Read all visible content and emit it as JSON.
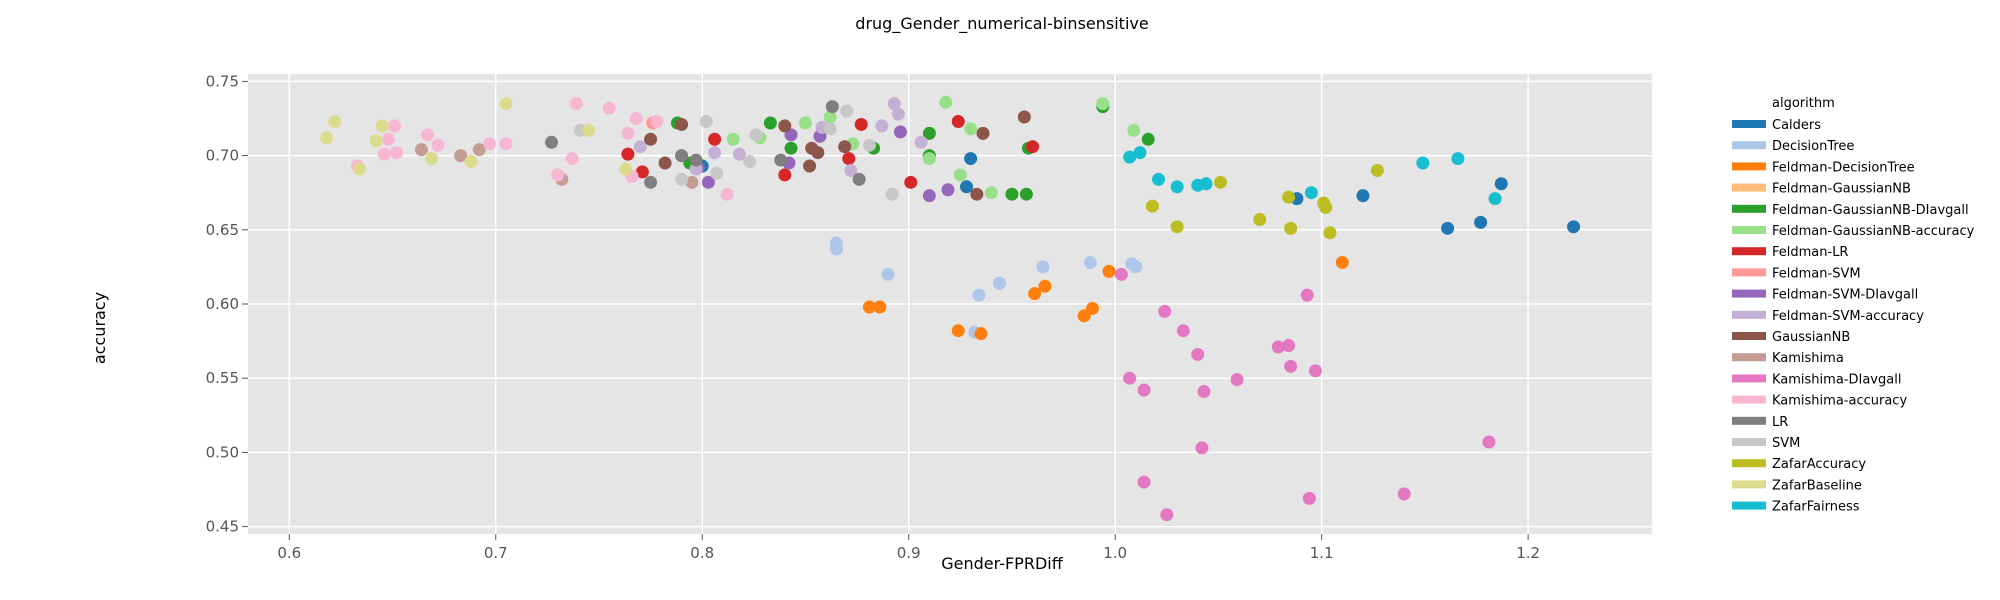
{
  "chart_data": {
    "type": "scatter",
    "title": "drug_Gender_numerical-binsensitive",
    "xlabel": "Gender-FPRDiff",
    "ylabel": "accuracy",
    "xlim": [
      0.58,
      1.26
    ],
    "ylim": [
      0.445,
      0.755
    ],
    "xticks": [
      "0.6",
      "0.7",
      "0.8",
      "0.9",
      "1.0",
      "1.1",
      "1.2"
    ],
    "yticks": [
      "0.45",
      "0.50",
      "0.55",
      "0.60",
      "0.65",
      "0.70",
      "0.75"
    ],
    "grid": true,
    "background": "#e5e5e5",
    "legend": {
      "title": "algorithm",
      "placement": "right"
    },
    "series": [
      {
        "name": "Calders",
        "color": "#1f77b4",
        "points": [
          [
            1.088,
            0.671
          ],
          [
            1.12,
            0.673
          ],
          [
            1.161,
            0.651
          ],
          [
            1.177,
            0.655
          ],
          [
            1.187,
            0.681
          ],
          [
            1.222,
            0.652
          ],
          [
            0.93,
            0.698
          ],
          [
            0.928,
            0.679
          ],
          [
            0.8,
            0.693
          ]
        ]
      },
      {
        "name": "DecisionTree",
        "color": "#aec7e8",
        "points": [
          [
            0.865,
            0.641
          ],
          [
            0.865,
            0.637
          ],
          [
            0.89,
            0.62
          ],
          [
            0.932,
            0.581
          ],
          [
            0.934,
            0.606
          ],
          [
            0.944,
            0.614
          ],
          [
            0.965,
            0.625
          ],
          [
            0.988,
            0.628
          ],
          [
            1.008,
            0.627
          ],
          [
            1.01,
            0.625
          ]
        ]
      },
      {
        "name": "Feldman-DecisionTree",
        "color": "#ff7f0e",
        "points": [
          [
            0.881,
            0.598
          ],
          [
            0.886,
            0.598
          ],
          [
            0.924,
            0.582
          ],
          [
            0.935,
            0.58
          ],
          [
            0.961,
            0.607
          ],
          [
            0.966,
            0.612
          ],
          [
            0.985,
            0.592
          ],
          [
            0.989,
            0.597
          ],
          [
            0.997,
            0.622
          ],
          [
            1.11,
            0.628
          ]
        ]
      },
      {
        "name": "Feldman-GaussianNB",
        "color": "#ffbb78",
        "points": []
      },
      {
        "name": "Feldman-GaussianNB-DIavgall",
        "color": "#2ca02c",
        "points": [
          [
            0.788,
            0.722
          ],
          [
            0.794,
            0.695
          ],
          [
            0.833,
            0.722
          ],
          [
            0.843,
            0.705
          ],
          [
            0.883,
            0.705
          ],
          [
            0.91,
            0.7
          ],
          [
            0.91,
            0.715
          ],
          [
            0.95,
            0.674
          ],
          [
            0.957,
            0.674
          ],
          [
            0.958,
            0.705
          ],
          [
            0.994,
            0.733
          ],
          [
            1.016,
            0.711
          ]
        ]
      },
      {
        "name": "Feldman-GaussianNB-accuracy",
        "color": "#98df8a",
        "points": [
          [
            0.815,
            0.711
          ],
          [
            0.828,
            0.712
          ],
          [
            0.85,
            0.722
          ],
          [
            0.862,
            0.726
          ],
          [
            0.873,
            0.708
          ],
          [
            0.91,
            0.698
          ],
          [
            0.918,
            0.736
          ],
          [
            0.925,
            0.687
          ],
          [
            0.93,
            0.718
          ],
          [
            0.94,
            0.675
          ],
          [
            0.994,
            0.735
          ],
          [
            1.009,
            0.717
          ]
        ]
      },
      {
        "name": "Feldman-LR",
        "color": "#d62728",
        "points": [
          [
            0.764,
            0.701
          ],
          [
            0.771,
            0.689
          ],
          [
            0.806,
            0.711
          ],
          [
            0.84,
            0.687
          ],
          [
            0.871,
            0.698
          ],
          [
            0.877,
            0.721
          ],
          [
            0.901,
            0.682
          ],
          [
            0.924,
            0.723
          ],
          [
            0.96,
            0.706
          ]
        ]
      },
      {
        "name": "Feldman-SVM",
        "color": "#ff9896",
        "points": [
          [
            0.776,
            0.722
          ]
        ]
      },
      {
        "name": "Feldman-SVM-DIavgall",
        "color": "#9467bd",
        "points": [
          [
            0.798,
            0.692
          ],
          [
            0.803,
            0.682
          ],
          [
            0.842,
            0.695
          ],
          [
            0.843,
            0.714
          ],
          [
            0.857,
            0.713
          ],
          [
            0.896,
            0.716
          ],
          [
            0.91,
            0.673
          ],
          [
            0.919,
            0.677
          ]
        ]
      },
      {
        "name": "Feldman-SVM-accuracy",
        "color": "#c5b0d5",
        "points": [
          [
            0.77,
            0.706
          ],
          [
            0.797,
            0.691
          ],
          [
            0.806,
            0.702
          ],
          [
            0.818,
            0.701
          ],
          [
            0.858,
            0.719
          ],
          [
            0.872,
            0.69
          ],
          [
            0.887,
            0.72
          ],
          [
            0.893,
            0.735
          ],
          [
            0.895,
            0.728
          ],
          [
            0.906,
            0.709
          ]
        ]
      },
      {
        "name": "GaussianNB",
        "color": "#8c564b",
        "points": [
          [
            0.775,
            0.711
          ],
          [
            0.782,
            0.695
          ],
          [
            0.79,
            0.721
          ],
          [
            0.84,
            0.72
          ],
          [
            0.852,
            0.693
          ],
          [
            0.853,
            0.705
          ],
          [
            0.856,
            0.702
          ],
          [
            0.869,
            0.706
          ],
          [
            0.933,
            0.674
          ],
          [
            0.936,
            0.715
          ],
          [
            0.956,
            0.726
          ]
        ]
      },
      {
        "name": "Kamishima",
        "color": "#c49c94",
        "points": [
          [
            0.664,
            0.704
          ],
          [
            0.683,
            0.7
          ],
          [
            0.692,
            0.704
          ],
          [
            0.732,
            0.684
          ],
          [
            0.795,
            0.682
          ]
        ]
      },
      {
        "name": "Kamishima-DIavgall",
        "color": "#e377c2",
        "points": [
          [
            1.003,
            0.62
          ],
          [
            1.007,
            0.55
          ],
          [
            1.014,
            0.542
          ],
          [
            1.014,
            0.48
          ],
          [
            1.024,
            0.595
          ],
          [
            1.025,
            0.458
          ],
          [
            1.033,
            0.582
          ],
          [
            1.04,
            0.566
          ],
          [
            1.042,
            0.503
          ],
          [
            1.043,
            0.541
          ],
          [
            1.059,
            0.549
          ],
          [
            1.079,
            0.571
          ],
          [
            1.084,
            0.572
          ],
          [
            1.085,
            0.558
          ],
          [
            1.093,
            0.606
          ],
          [
            1.094,
            0.469
          ],
          [
            1.097,
            0.555
          ],
          [
            1.14,
            0.472
          ],
          [
            1.181,
            0.507
          ]
        ]
      },
      {
        "name": "Kamishima-accuracy",
        "color": "#f7b6d2",
        "points": [
          [
            0.633,
            0.693
          ],
          [
            0.646,
            0.701
          ],
          [
            0.648,
            0.711
          ],
          [
            0.651,
            0.72
          ],
          [
            0.652,
            0.702
          ],
          [
            0.667,
            0.714
          ],
          [
            0.672,
            0.707
          ],
          [
            0.697,
            0.708
          ],
          [
            0.705,
            0.708
          ],
          [
            0.73,
            0.687
          ],
          [
            0.737,
            0.698
          ],
          [
            0.739,
            0.735
          ],
          [
            0.755,
            0.732
          ],
          [
            0.764,
            0.715
          ],
          [
            0.766,
            0.686
          ],
          [
            0.768,
            0.725
          ],
          [
            0.778,
            0.723
          ],
          [
            0.812,
            0.674
          ]
        ]
      },
      {
        "name": "LR",
        "color": "#7f7f7f",
        "points": [
          [
            0.727,
            0.709
          ],
          [
            0.775,
            0.682
          ],
          [
            0.79,
            0.7
          ],
          [
            0.797,
            0.697
          ],
          [
            0.838,
            0.697
          ],
          [
            0.863,
            0.733
          ],
          [
            0.876,
            0.684
          ]
        ]
      },
      {
        "name": "SVM",
        "color": "#c7c7c7",
        "points": [
          [
            0.741,
            0.717
          ],
          [
            0.79,
            0.684
          ],
          [
            0.802,
            0.723
          ],
          [
            0.807,
            0.688
          ],
          [
            0.823,
            0.696
          ],
          [
            0.826,
            0.714
          ],
          [
            0.862,
            0.718
          ],
          [
            0.87,
            0.73
          ],
          [
            0.881,
            0.707
          ],
          [
            0.892,
            0.674
          ]
        ]
      },
      {
        "name": "ZafarAccuracy",
        "color": "#bcbd22",
        "points": [
          [
            1.018,
            0.666
          ],
          [
            1.03,
            0.652
          ],
          [
            1.051,
            0.682
          ],
          [
            1.07,
            0.657
          ],
          [
            1.084,
            0.672
          ],
          [
            1.085,
            0.651
          ],
          [
            1.101,
            0.668
          ],
          [
            1.102,
            0.665
          ],
          [
            1.104,
            0.648
          ],
          [
            1.127,
            0.69
          ]
        ]
      },
      {
        "name": "ZafarBaseline",
        "color": "#dbdb8d",
        "points": [
          [
            0.618,
            0.712
          ],
          [
            0.622,
            0.723
          ],
          [
            0.634,
            0.691
          ],
          [
            0.642,
            0.71
          ],
          [
            0.645,
            0.72
          ],
          [
            0.669,
            0.698
          ],
          [
            0.688,
            0.696
          ],
          [
            0.705,
            0.735
          ],
          [
            0.745,
            0.717
          ],
          [
            0.763,
            0.691
          ]
        ]
      },
      {
        "name": "ZafarFairness",
        "color": "#17becf",
        "points": [
          [
            1.007,
            0.699
          ],
          [
            1.012,
            0.702
          ],
          [
            1.021,
            0.684
          ],
          [
            1.03,
            0.679
          ],
          [
            1.04,
            0.68
          ],
          [
            1.044,
            0.681
          ],
          [
            1.095,
            0.675
          ],
          [
            1.149,
            0.695
          ],
          [
            1.166,
            0.698
          ],
          [
            1.184,
            0.671
          ]
        ]
      }
    ]
  }
}
